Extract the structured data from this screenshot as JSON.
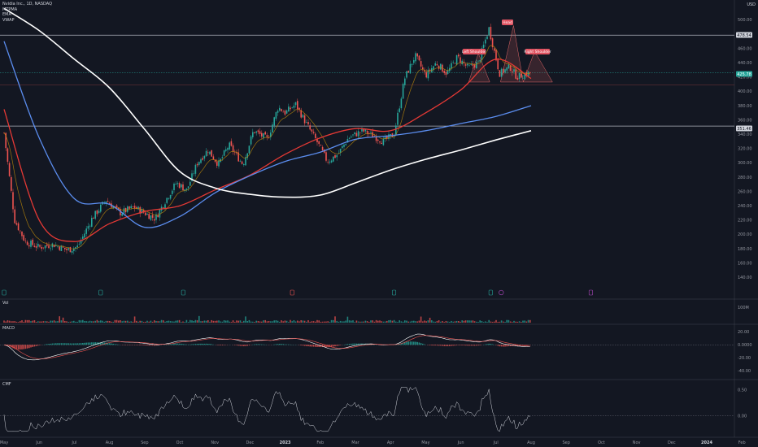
{
  "legend": {
    "symbol": "Nvidia Inc., 1D, NASDAQ",
    "indicators": [
      "MTPMA",
      "EMA",
      "VWAP"
    ]
  },
  "currency": "USD",
  "panels": {
    "volume": "Vol",
    "macd": "MACD",
    "cmf": "CMF"
  },
  "price_labels": {
    "level_top": "478.54",
    "last": "425.78",
    "level_low": "351.46"
  },
  "patterns": {
    "head": "Head",
    "left_shoulder": "Left Shoulder",
    "right_shoulder": "Right Shoulder"
  },
  "colors": {
    "background": "#131722",
    "up": "#26a69a",
    "down": "#ef5350",
    "ma_red": "#e53935",
    "ma_blue": "#5b8def",
    "ma_white": "#ffffff",
    "ema_orange": "#b8860b",
    "pattern": "#e06666",
    "marker_green": "#26a69a",
    "marker_red": "#ef5350",
    "marker_purple": "#ab47bc"
  },
  "chart_data": {
    "type": "candlestick",
    "x_axis_labels": [
      "May",
      "Jun",
      "Jul",
      "Aug",
      "Sep",
      "Oct",
      "Nov",
      "Dec",
      "2023",
      "Feb",
      "Mar",
      "Apr",
      "May",
      "Jun",
      "Jul",
      "Aug",
      "Sep",
      "Oct",
      "Nov",
      "Dec",
      "2024",
      "Feb"
    ],
    "y_axis": {
      "ticks": [
        "500.00",
        "480.00",
        "460.00",
        "440.00",
        "420.00",
        "400.00",
        "380.00",
        "360.00",
        "340.00",
        "320.00",
        "300.00",
        "280.00",
        "260.00",
        "240.00",
        "220.00",
        "200.00",
        "180.00",
        "160.00",
        "140.00"
      ],
      "range": [
        130,
        505
      ]
    },
    "horizontal_levels": [
      478.54,
      351.46
    ],
    "last_price": 425.78,
    "price_path": {
      "x_months": [
        0,
        0.3,
        0.6,
        1.0,
        1.4,
        1.8,
        2.1,
        2.5,
        2.9,
        3.3,
        3.7,
        4.0,
        4.3,
        4.6,
        4.9,
        5.2,
        5.5,
        5.8,
        6.1,
        6.4,
        6.8,
        7.1,
        7.5,
        7.8,
        8.0,
        8.3,
        8.6,
        8.9,
        9.2,
        9.5,
        9.8,
        10.2,
        10.5,
        10.8,
        11.1,
        11.4,
        11.7,
        12.0,
        12.3,
        12.6,
        12.9,
        13.2,
        13.5,
        13.8,
        14.1,
        14.4,
        14.6,
        14.8,
        15.0
      ],
      "close": [
        342,
        220,
        190,
        182,
        186,
        178,
        183,
        222,
        248,
        230,
        238,
        230,
        222,
        248,
        272,
        262,
        300,
        318,
        298,
        325,
        298,
        345,
        333,
        378,
        370,
        382,
        355,
        330,
        302,
        312,
        335,
        345,
        338,
        330,
        340,
        418,
        450,
        422,
        440,
        425,
        448,
        433,
        440,
        488,
        425,
        434,
        420,
        424,
        426
      ]
    },
    "series": [
      {
        "name": "MA (red)",
        "x_months": [
          0,
          1,
          2,
          3,
          4,
          5,
          6,
          7,
          8,
          9,
          10,
          11,
          12,
          13,
          14,
          15
        ],
        "values": [
          375,
          220,
          190,
          215,
          232,
          240,
          262,
          283,
          312,
          335,
          348,
          345,
          370,
          402,
          445,
          418
        ]
      },
      {
        "name": "MA (blue)",
        "x_months": [
          0,
          1,
          2,
          3,
          4,
          5,
          6,
          7,
          8,
          9,
          10,
          11,
          12,
          13,
          14,
          15
        ],
        "values": [
          470,
          335,
          250,
          242,
          210,
          225,
          258,
          282,
          302,
          315,
          333,
          338,
          345,
          355,
          365,
          380
        ]
      },
      {
        "name": "MA (white)",
        "x_months": [
          0,
          1,
          2,
          3,
          4,
          5,
          6,
          7,
          8,
          9,
          10,
          11,
          12,
          13,
          14,
          15
        ],
        "values": [
          516,
          485,
          445,
          405,
          347,
          288,
          265,
          256,
          252,
          255,
          272,
          290,
          305,
          318,
          332,
          345
        ]
      }
    ],
    "pattern_points": {
      "left_shoulder": {
        "x_month": 13.5,
        "y": 453
      },
      "head": {
        "x_month": 14.5,
        "y": 492
      },
      "right_shoulder": {
        "x_month": 15.1,
        "y": 456
      },
      "neckline": 425
    },
    "event_markers": [
      {
        "x_month": 0.0,
        "type": "green"
      },
      {
        "x_month": 2.75,
        "type": "green"
      },
      {
        "x_month": 5.1,
        "type": "green"
      },
      {
        "x_month": 8.2,
        "type": "red"
      },
      {
        "x_month": 11.1,
        "type": "green"
      },
      {
        "x_month": 13.85,
        "type": "green"
      },
      {
        "x_month": 14.15,
        "type": "purple"
      },
      {
        "x_month": 16.7,
        "type": "purple"
      }
    ],
    "volume": {
      "axis_tick": "100M"
    },
    "macd": {
      "axis_ticks": [
        "20.00",
        "0.0000",
        "-20.00",
        "-40.00"
      ],
      "range": [
        -50,
        28
      ]
    },
    "cmf": {
      "axis_ticks": [
        "0.50",
        "0.00"
      ],
      "range": [
        -0.35,
        0.62
      ]
    }
  }
}
